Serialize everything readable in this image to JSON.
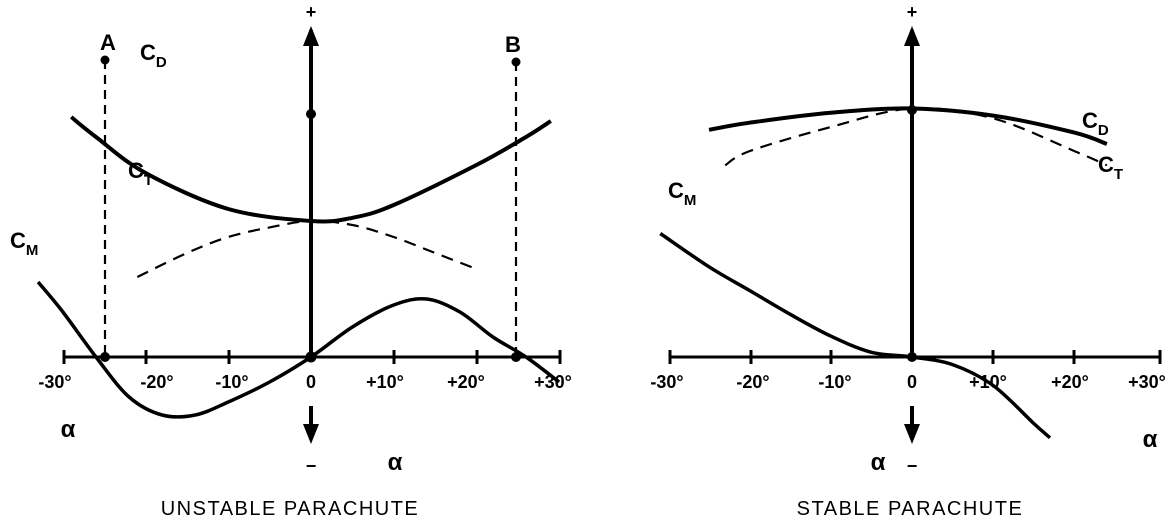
{
  "chart_data": [
    {
      "type": "line",
      "title": "UNSTABLE PARACHUTE",
      "xlabel": "α",
      "xlim": [
        -30,
        30
      ],
      "x_ticks": [
        "-30°",
        "-20°",
        "-10°",
        "0",
        "+10°",
        "+20°",
        "+30°"
      ],
      "y_axis_positive": "+",
      "y_axis_negative": "−",
      "points": [
        "A",
        "B"
      ],
      "series": [
        {
          "name": "C",
          "sub": "D",
          "style": "solid",
          "x": [
            -29,
            -26,
            -20,
            -10,
            0,
            5,
            10,
            20,
            26,
            29
          ],
          "y": [
            3.0,
            2.75,
            2.3,
            1.85,
            1.7,
            1.74,
            1.9,
            2.4,
            2.75,
            2.95
          ]
        },
        {
          "name": "C",
          "sub": "T",
          "style": "dashed",
          "x": [
            -21,
            -15,
            -10,
            -5,
            0,
            5,
            10,
            15,
            20
          ],
          "y": [
            1.0,
            1.3,
            1.5,
            1.62,
            1.7,
            1.65,
            1.5,
            1.3,
            1.1
          ]
        },
        {
          "name": "C",
          "sub": "M",
          "style": "solid",
          "x": [
            -33,
            -30,
            -26,
            -22,
            -18,
            -14,
            -10,
            -5,
            0,
            5,
            10,
            14,
            18,
            22,
            26,
            30
          ],
          "y": [
            0.75,
            0.45,
            0.0,
            -0.4,
            -0.58,
            -0.58,
            -0.45,
            -0.25,
            0.0,
            0.3,
            0.52,
            0.58,
            0.45,
            0.2,
            0.0,
            -0.25
          ]
        }
      ]
    },
    {
      "type": "line",
      "title": "STABLE PARACHUTE",
      "xlabel": "α",
      "xlim": [
        -30,
        30
      ],
      "x_ticks": [
        "-30°",
        "-20°",
        "-10°",
        "0",
        "+10°",
        "+20°",
        "+30°"
      ],
      "y_axis_positive": "+",
      "y_axis_negative": "−",
      "series": [
        {
          "name": "C",
          "sub": "D",
          "style": "solid",
          "x": [
            -25,
            -20,
            -10,
            0,
            10,
            20,
            24
          ],
          "y": [
            1.6,
            1.65,
            1.72,
            1.75,
            1.7,
            1.58,
            1.5
          ]
        },
        {
          "name": "C",
          "sub": "T",
          "style": "dashed",
          "x": [
            -23,
            -20,
            -10,
            0,
            10,
            20,
            24
          ],
          "y": [
            1.35,
            1.45,
            1.62,
            1.75,
            1.68,
            1.45,
            1.35
          ]
        },
        {
          "name": "C",
          "sub": "M",
          "style": "solid",
          "x": [
            -31,
            -25,
            -20,
            -15,
            -10,
            -5,
            0,
            5,
            10,
            15,
            17
          ],
          "y": [
            1.3,
            0.95,
            0.7,
            0.45,
            0.22,
            0.05,
            0.0,
            -0.08,
            -0.3,
            -0.7,
            -0.85
          ]
        }
      ]
    }
  ]
}
